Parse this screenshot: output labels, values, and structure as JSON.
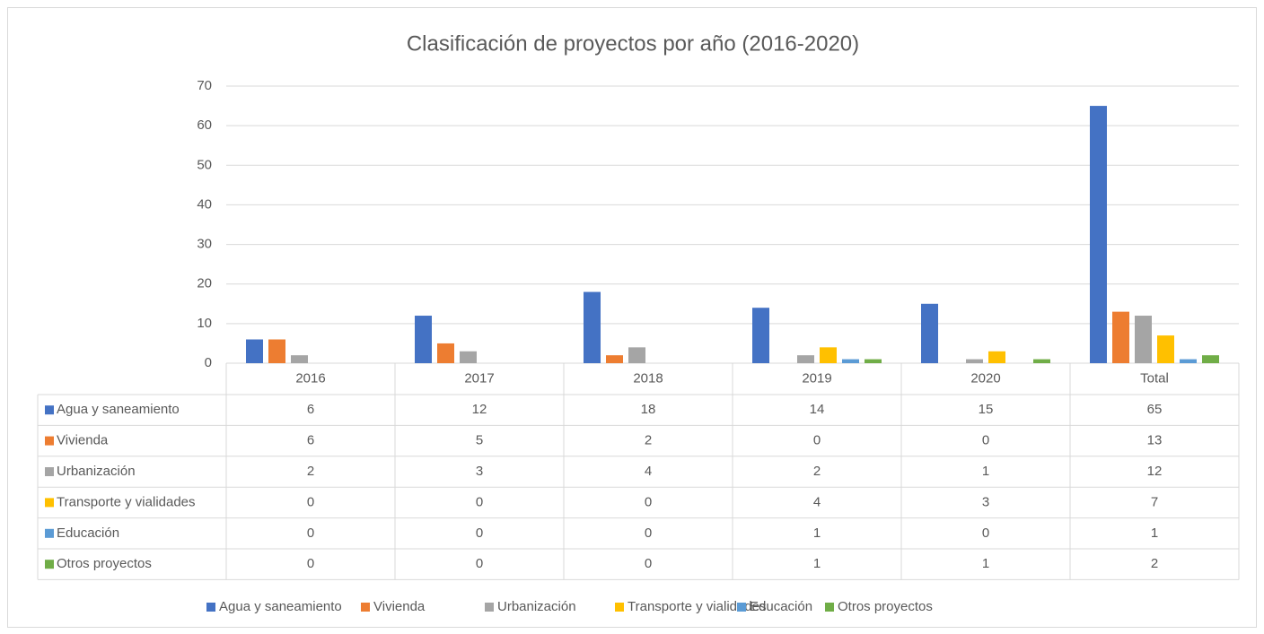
{
  "chart_data": {
    "type": "bar",
    "title": "Clasificación de proyectos por año (2016-2020)",
    "categories": [
      "2016",
      "2017",
      "2018",
      "2019",
      "2020",
      "Total"
    ],
    "series": [
      {
        "name": "Agua y saneamiento",
        "color": "#4472c4",
        "values": [
          6,
          12,
          18,
          14,
          15,
          65
        ]
      },
      {
        "name": "Vivienda",
        "color": "#ed7d31",
        "values": [
          6,
          5,
          2,
          0,
          0,
          13
        ]
      },
      {
        "name": "Urbanización",
        "color": "#a5a5a5",
        "values": [
          2,
          3,
          4,
          2,
          1,
          12
        ]
      },
      {
        "name": "Transporte y vialidades",
        "color": "#ffc000",
        "values": [
          0,
          0,
          0,
          4,
          3,
          7
        ]
      },
      {
        "name": "Educación",
        "color": "#5b9bd5",
        "values": [
          0,
          0,
          0,
          1,
          0,
          1
        ]
      },
      {
        "name": "Otros proyectos",
        "color": "#70ad47",
        "values": [
          0,
          0,
          0,
          1,
          1,
          2
        ]
      }
    ],
    "ylim": [
      0,
      70
    ],
    "yticks": [
      0,
      10,
      20,
      30,
      40,
      50,
      60,
      70
    ],
    "grid": true,
    "legend": "bottom"
  }
}
